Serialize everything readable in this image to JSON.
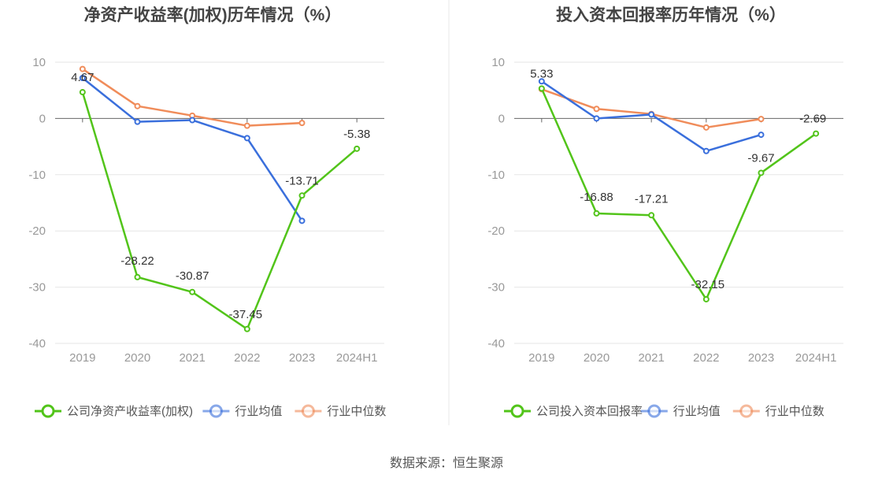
{
  "source": "数据来源：恒生聚源",
  "colors": {
    "company": "#52c41a",
    "industry_avg": "#3a6fdc",
    "industry_median": "#f08c5a",
    "grid": "#e6e6e6",
    "axis_text": "#999999",
    "label_text": "#333333",
    "title_text": "#444444"
  },
  "chart_data": [
    {
      "type": "line",
      "title": "净资产收益率(加权)历年情况（%）",
      "categories": [
        "2019",
        "2020",
        "2021",
        "2022",
        "2023",
        "2024H1"
      ],
      "ylim": [
        -40,
        10
      ],
      "yticks": [
        10,
        0,
        -10,
        -20,
        -30,
        -40
      ],
      "grid": true,
      "legend_position": "bottom",
      "series": [
        {
          "name": "公司净资产收益率(加权)",
          "key": "company",
          "values": [
            4.67,
            -28.22,
            -30.87,
            -37.45,
            -13.71,
            -5.38
          ],
          "labels": [
            "4.67",
            "-28.22",
            "-30.87",
            "-37.45",
            "-13.71",
            "-5.38"
          ]
        },
        {
          "name": "行业均值",
          "key": "industry_avg",
          "values": [
            7.2,
            -0.6,
            -0.3,
            -3.5,
            -18.2,
            null
          ]
        },
        {
          "name": "行业中位数",
          "key": "industry_median",
          "values": [
            8.8,
            2.2,
            0.5,
            -1.3,
            -0.8,
            null
          ]
        }
      ]
    },
    {
      "type": "line",
      "title": "投入资本回报率历年情况（%）",
      "categories": [
        "2019",
        "2020",
        "2021",
        "2022",
        "2023",
        "2024H1"
      ],
      "ylim": [
        -40,
        10
      ],
      "yticks": [
        10,
        0,
        -10,
        -20,
        -30,
        -40
      ],
      "grid": true,
      "legend_position": "bottom",
      "series": [
        {
          "name": "公司投入资本回报率",
          "key": "company",
          "values": [
            5.33,
            -16.88,
            -17.21,
            -32.15,
            -9.67,
            -2.69
          ],
          "labels": [
            "5.33",
            "-16.88",
            "-17.21",
            "-32.15",
            "-9.67",
            "-2.69"
          ]
        },
        {
          "name": "行业均值",
          "key": "industry_avg",
          "values": [
            6.6,
            0.0,
            0.7,
            -5.8,
            -2.9,
            null
          ]
        },
        {
          "name": "行业中位数",
          "key": "industry_median",
          "values": [
            5.2,
            1.7,
            0.8,
            -1.6,
            -0.1,
            null
          ]
        }
      ]
    }
  ]
}
